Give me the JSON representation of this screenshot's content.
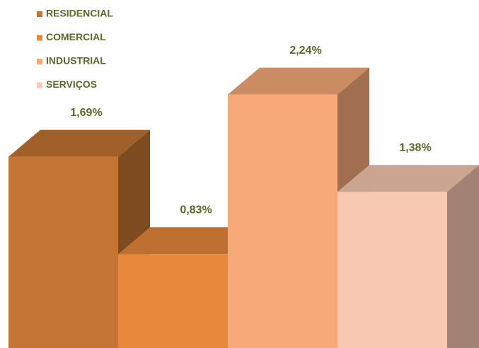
{
  "chart_data": {
    "type": "bar3d",
    "categories": [
      "RESIDENCIAL",
      "COMERCIAL",
      "INDUSTRIAL",
      "SERVIÇOS"
    ],
    "values": [
      1.69,
      0.83,
      2.24,
      1.38
    ],
    "value_labels": [
      "1,69%",
      "0,83%",
      "2,24%",
      "1,38%"
    ],
    "colors": [
      "#c47433",
      "#e8883c",
      "#f7a979",
      "#f9c8b2"
    ],
    "legend": "top-left"
  }
}
